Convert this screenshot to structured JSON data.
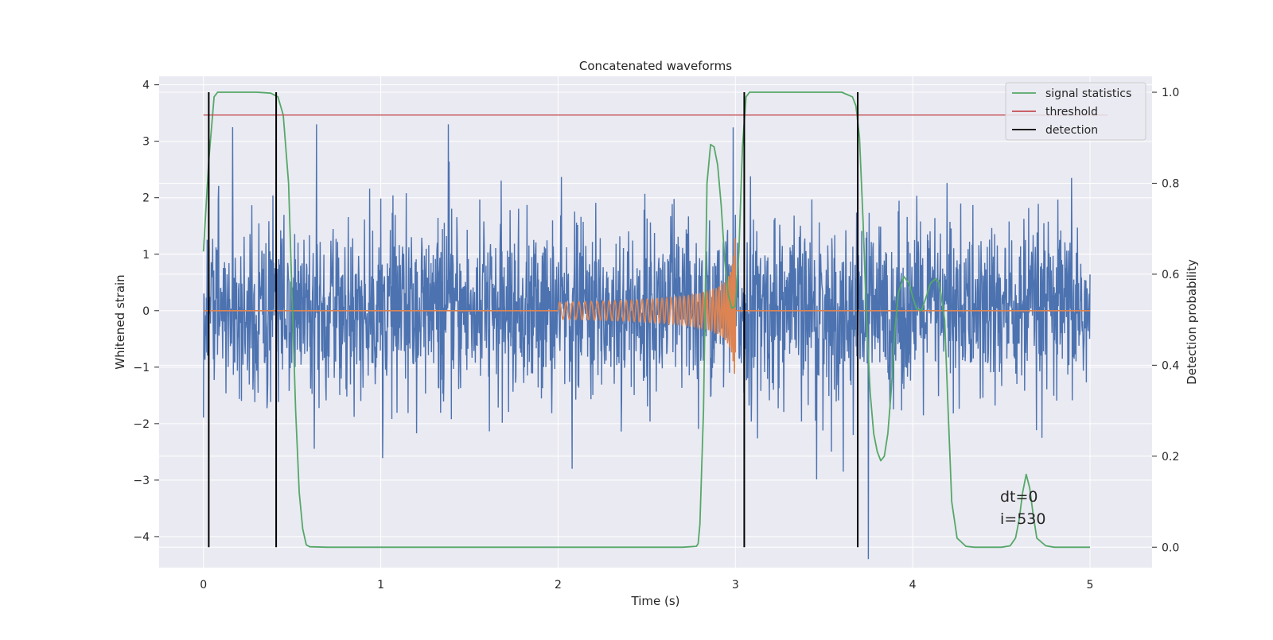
{
  "chart_data": {
    "type": "line",
    "title": "Concatenated waveforms",
    "xlabel": "Time (s)",
    "ylabel": "Whitened strain",
    "ylabel_right": "Detection probability",
    "xlim": [
      -0.25,
      5.35
    ],
    "ylim": [
      -4.55,
      4.15
    ],
    "ylim_right": [
      -0.045,
      1.035
    ],
    "x_ticks": [
      0,
      1,
      2,
      3,
      4,
      5
    ],
    "x_tick_labels": [
      "0",
      "1",
      "2",
      "3",
      "4",
      "5"
    ],
    "y_ticks": [
      4,
      3,
      2,
      1,
      0,
      -1,
      -2,
      -3,
      -4
    ],
    "y_tick_labels": [
      "4",
      "3",
      "2",
      "1",
      "0",
      "−1",
      "−2",
      "−3",
      "−4"
    ],
    "y2_ticks": [
      1.0,
      0.8,
      0.6,
      0.4,
      0.2,
      0.0
    ],
    "y2_tick_labels": [
      "1.0",
      "0.8",
      "0.6",
      "0.4",
      "0.2",
      "0.0"
    ],
    "grid": true,
    "legend_position": "top-right",
    "legend": [
      {
        "label": "signal statistics",
        "color": "#55a868"
      },
      {
        "label": "threshold",
        "color": "#c44e52"
      },
      {
        "label": "detection",
        "color": "#000000"
      }
    ],
    "colors": {
      "strain": "#4c72b0",
      "injection": "#dd8452",
      "signal_statistics": "#55a868",
      "threshold": "#c44e52",
      "detection": "#000000",
      "plot_background": "#eaeaf2",
      "grid": "#ffffff"
    },
    "strain_series": {
      "x_range": [
        0,
        5
      ],
      "typical_range": [
        -1.5,
        1.5
      ],
      "peak_max": 3.3,
      "peak_min": -4.4
    },
    "injection_series": {
      "x_range": [
        0,
        5
      ],
      "chirp_start": 2.0,
      "chirp_end": 3.0,
      "start_amplitude": 0.15,
      "end_amplitude": 1.3
    },
    "threshold": {
      "x_range": [
        0,
        5.1
      ],
      "value": 0.95
    },
    "detections": [
      0.03,
      0.41,
      3.05,
      3.69
    ],
    "signal_statistics": {
      "x": [
        0.0,
        0.03,
        0.06,
        0.08,
        0.1,
        0.2,
        0.3,
        0.38,
        0.42,
        0.45,
        0.48,
        0.5,
        0.52,
        0.54,
        0.56,
        0.58,
        0.6,
        0.7,
        1.0,
        2.0,
        2.7,
        2.78,
        2.79,
        2.8,
        2.82,
        2.84,
        2.86,
        2.88,
        2.9,
        2.92,
        2.94,
        2.96,
        2.98,
        3.0,
        3.02,
        3.04,
        3.06,
        3.08,
        3.1,
        3.3,
        3.6,
        3.66,
        3.68,
        3.7,
        3.72,
        3.74,
        3.76,
        3.78,
        3.8,
        3.82,
        3.84,
        3.86,
        3.88,
        3.9,
        3.92,
        3.95,
        3.98,
        4.0,
        4.02,
        4.05,
        4.08,
        4.1,
        4.13,
        4.15,
        4.18,
        4.2,
        4.22,
        4.25,
        4.3,
        4.35,
        4.4,
        4.5,
        4.55,
        4.58,
        4.6,
        4.62,
        4.64,
        4.66,
        4.68,
        4.7,
        4.75,
        4.8,
        4.9,
        5.0
      ],
      "y": [
        0.65,
        0.85,
        0.99,
        1.0,
        1.0,
        1.0,
        1.0,
        0.998,
        0.99,
        0.95,
        0.8,
        0.55,
        0.3,
        0.12,
        0.04,
        0.005,
        0.001,
        0.0,
        0.0,
        0.0,
        0.0,
        0.002,
        0.008,
        0.05,
        0.3,
        0.8,
        0.885,
        0.88,
        0.84,
        0.75,
        0.63,
        0.555,
        0.525,
        0.53,
        0.65,
        0.88,
        0.99,
        1.0,
        1.0,
        1.0,
        1.0,
        0.99,
        0.97,
        0.9,
        0.72,
        0.5,
        0.34,
        0.25,
        0.21,
        0.19,
        0.2,
        0.25,
        0.35,
        0.48,
        0.56,
        0.595,
        0.58,
        0.55,
        0.525,
        0.52,
        0.555,
        0.58,
        0.59,
        0.58,
        0.5,
        0.3,
        0.1,
        0.02,
        0.002,
        0.0,
        0.0,
        0.0,
        0.003,
        0.02,
        0.06,
        0.12,
        0.16,
        0.13,
        0.07,
        0.02,
        0.003,
        0.0,
        0.0,
        0.0
      ]
    },
    "annotations": [
      "dt=0",
      "i=530"
    ]
  }
}
